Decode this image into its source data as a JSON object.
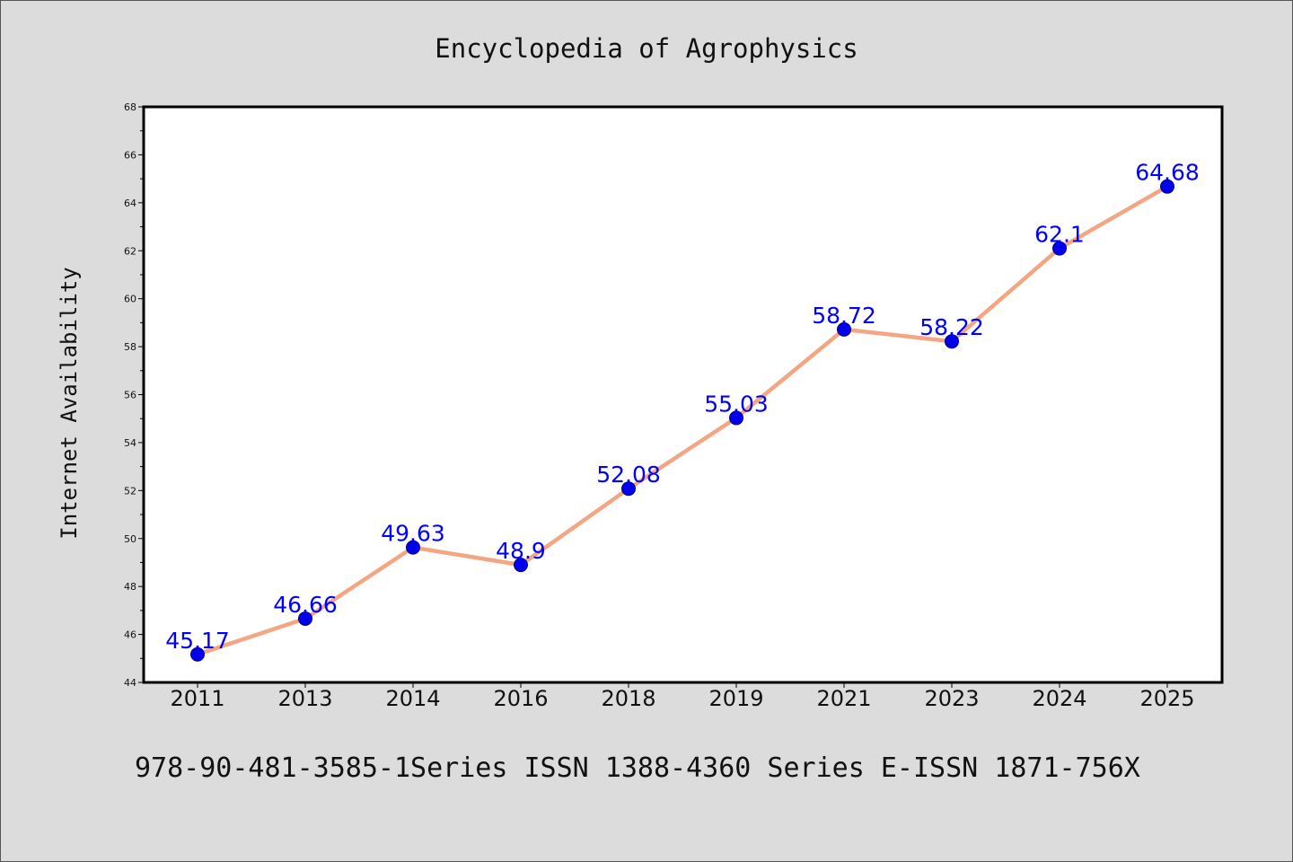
{
  "chart_data": {
    "type": "line",
    "title": "Encyclopedia of Agrophysics",
    "ylabel": "Internet Availability",
    "xlabel": "",
    "footer": "978-90-481-3585-1Series ISSN 1388-4360 Series E-ISSN 1871-756X",
    "categories": [
      "2011",
      "2013",
      "2014",
      "2016",
      "2018",
      "2019",
      "2021",
      "2023",
      "2024",
      "2025"
    ],
    "series": [
      {
        "values": [
          45.17,
          46.66,
          49.63,
          48.9,
          52.08,
          55.03,
          58.72,
          58.22,
          62.1,
          64.68
        ],
        "labels": [
          "45.17",
          "46.66",
          "49.63",
          "48.9",
          "52.08",
          "55.03",
          "58.72",
          "58.22",
          "62.1",
          "64.68"
        ],
        "line_color": "#f4a582",
        "marker_color": "#0000ee",
        "label_color": "#0000ff"
      }
    ],
    "ylim": [
      44,
      68
    ],
    "yticks": [
      "44",
      "46",
      "48",
      "50",
      "52",
      "54",
      "56",
      "58",
      "60",
      "62",
      "64",
      "66",
      "68"
    ],
    "grid": false,
    "legend": "none",
    "background": "#dcdcdc",
    "plot_background": "#ffffff"
  }
}
